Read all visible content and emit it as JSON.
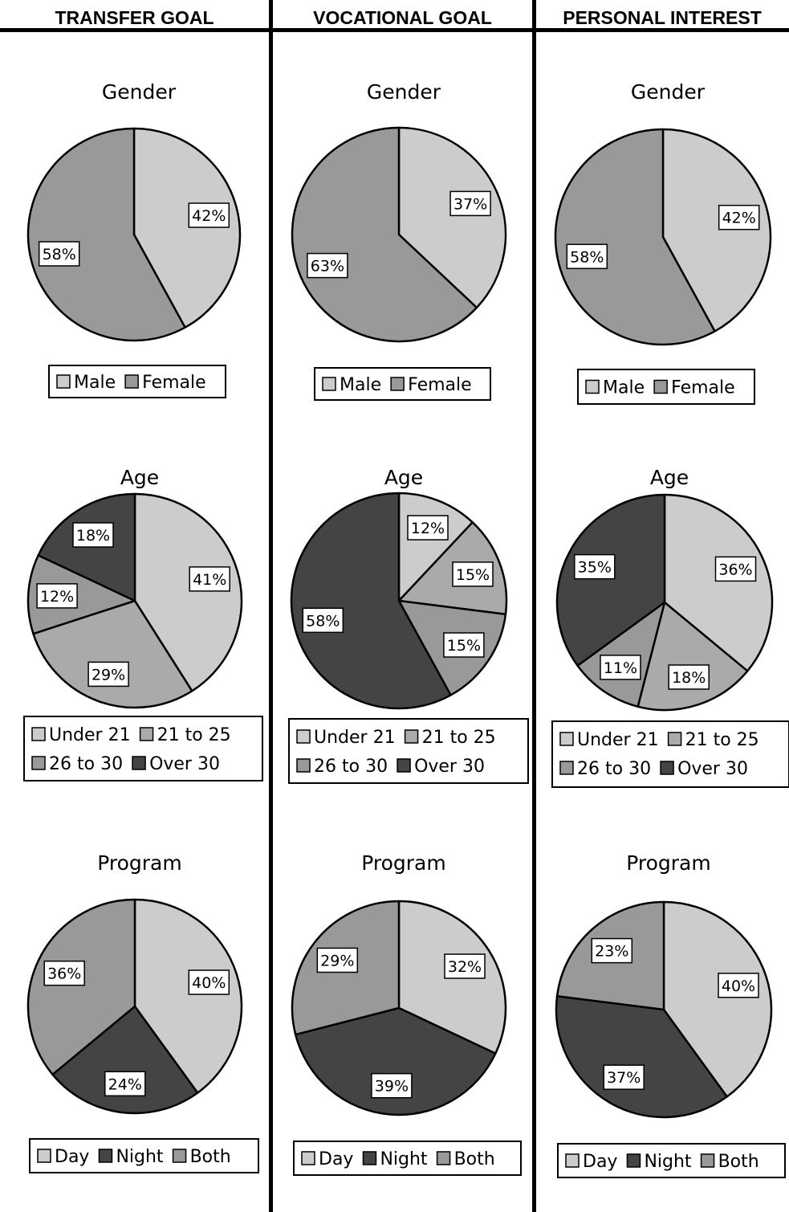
{
  "headers": [
    "TRANSFER GOAL",
    "VOCATIONAL GOAL",
    "PERSONAL INTEREST"
  ],
  "colors": {
    "light": "#cccccc",
    "medium": "#aaaaaa",
    "mid_dark": "#999999",
    "dark": "#444444"
  },
  "chart_data": [
    {
      "type": "pie",
      "column": "TRANSFER GOAL",
      "title": "Gender",
      "categories": [
        "Male",
        "Female"
      ],
      "values": [
        42,
        58
      ],
      "labels": [
        "42%",
        "58%"
      ],
      "colors": [
        "#cccccc",
        "#999999"
      ]
    },
    {
      "type": "pie",
      "column": "VOCATIONAL GOAL",
      "title": "Gender",
      "categories": [
        "Male",
        "Female"
      ],
      "values": [
        37,
        63
      ],
      "labels": [
        "37%",
        "63%"
      ],
      "colors": [
        "#cccccc",
        "#999999"
      ]
    },
    {
      "type": "pie",
      "column": "PERSONAL INTEREST",
      "title": "Gender",
      "categories": [
        "Male",
        "Female"
      ],
      "values": [
        42,
        58
      ],
      "labels": [
        "42%",
        "58%"
      ],
      "colors": [
        "#cccccc",
        "#999999"
      ]
    },
    {
      "type": "pie",
      "column": "TRANSFER GOAL",
      "title": "Age",
      "categories": [
        "Under 21",
        "21 to 25",
        "26 to 30",
        "Over 30"
      ],
      "values": [
        41,
        29,
        12,
        18
      ],
      "labels": [
        "41%",
        "29%",
        "12%",
        "18%"
      ],
      "colors": [
        "#cccccc",
        "#aaaaaa",
        "#999999",
        "#444444"
      ]
    },
    {
      "type": "pie",
      "column": "VOCATIONAL GOAL",
      "title": "Age",
      "categories": [
        "Under 21",
        "21 to 25",
        "26 to 30",
        "Over 30"
      ],
      "values": [
        12,
        15,
        15,
        58
      ],
      "labels": [
        "12%",
        "15%",
        "15%",
        "58%"
      ],
      "colors": [
        "#cccccc",
        "#aaaaaa",
        "#999999",
        "#444444"
      ]
    },
    {
      "type": "pie",
      "column": "PERSONAL INTEREST",
      "title": "Age",
      "categories": [
        "Under 21",
        "21 to 25",
        "26 to 30",
        "Over 30"
      ],
      "values": [
        36,
        18,
        11,
        35
      ],
      "labels": [
        "36%",
        "18%",
        "11%",
        "35%"
      ],
      "colors": [
        "#cccccc",
        "#aaaaaa",
        "#999999",
        "#444444"
      ]
    },
    {
      "type": "pie",
      "column": "TRANSFER GOAL",
      "title": "Program",
      "categories": [
        "Day",
        "Night",
        "Both"
      ],
      "values": [
        40,
        24,
        36
      ],
      "labels": [
        "40%",
        "24%",
        "36%"
      ],
      "colors": [
        "#cccccc",
        "#444444",
        "#999999"
      ]
    },
    {
      "type": "pie",
      "column": "VOCATIONAL GOAL",
      "title": "Program",
      "categories": [
        "Day",
        "Night",
        "Both"
      ],
      "values": [
        32,
        39,
        29
      ],
      "labels": [
        "32%",
        "39%",
        "29%"
      ],
      "colors": [
        "#cccccc",
        "#444444",
        "#999999"
      ]
    },
    {
      "type": "pie",
      "column": "PERSONAL INTEREST",
      "title": "Program",
      "categories": [
        "Day",
        "Night",
        "Both"
      ],
      "values": [
        40,
        37,
        23
      ],
      "labels": [
        "40%",
        "37%",
        "23%"
      ],
      "colors": [
        "#cccccc",
        "#444444",
        "#999999"
      ]
    }
  ]
}
